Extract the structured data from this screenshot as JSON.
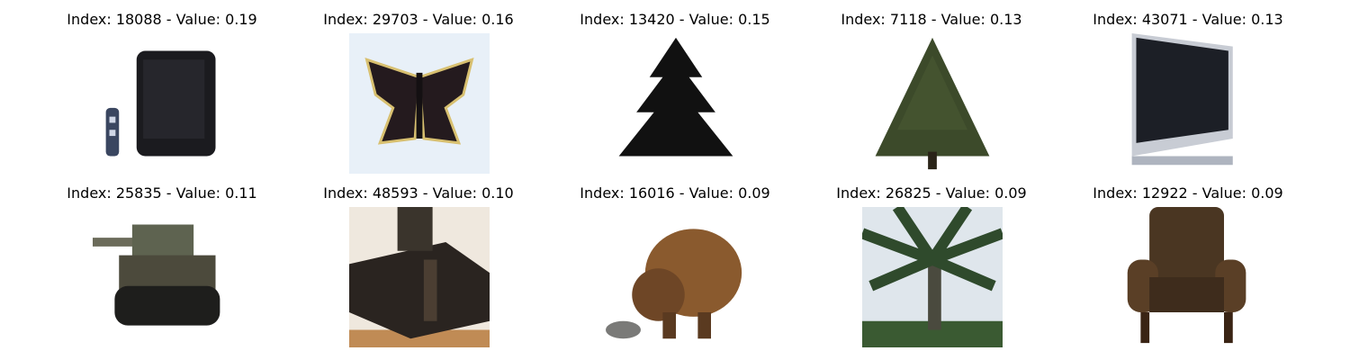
{
  "grid": {
    "items": [
      {
        "title": "Index: 18088 - Value: 0.19",
        "image": "television-with-remote"
      },
      {
        "title": "Index: 29703 - Value: 0.16",
        "image": "butterfly"
      },
      {
        "title": "Index: 13420 - Value: 0.15",
        "image": "dark-pine-tree"
      },
      {
        "title": "Index: 7118 - Value: 0.13",
        "image": "green-pine-tree"
      },
      {
        "title": "Index: 43071 - Value: 0.13",
        "image": "flat-screen-tv"
      },
      {
        "title": "Index: 25835 - Value: 0.11",
        "image": "tank"
      },
      {
        "title": "Index: 48593 - Value: 0.10",
        "image": "armored-vehicle"
      },
      {
        "title": "Index: 16016 - Value: 0.09",
        "image": "brown-animal"
      },
      {
        "title": "Index: 26825 - Value: 0.09",
        "image": "palm-tree"
      },
      {
        "title": "Index: 12922 - Value: 0.09",
        "image": "armchair"
      }
    ]
  }
}
